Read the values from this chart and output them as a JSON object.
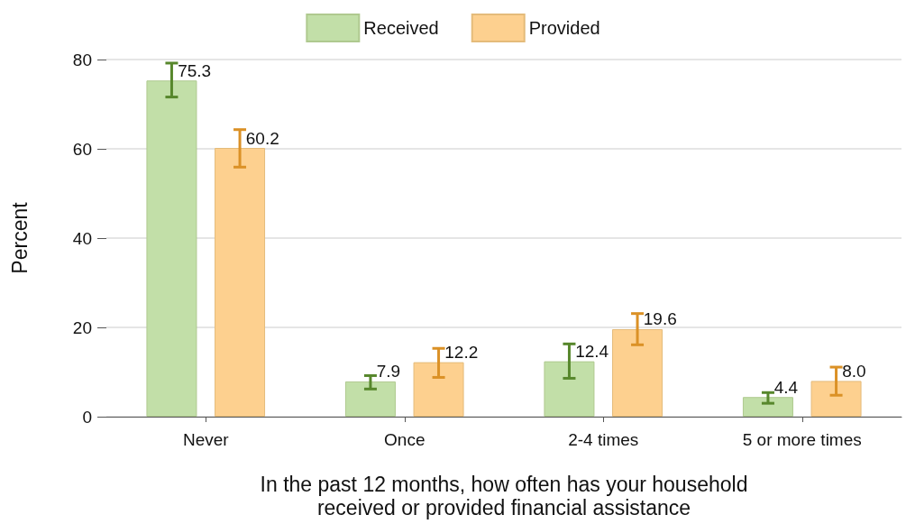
{
  "chart_data": {
    "type": "bar",
    "xlabel": "In the past 12 months, how often has your household\nreceived or provided financial assistance",
    "ylabel": "Percent",
    "categories": [
      "Never",
      "Once",
      "2-4 times",
      "5 or more times"
    ],
    "series": [
      {
        "name": "Received",
        "color": "#c2dfa8",
        "values": [
          75.3,
          7.9,
          12.4,
          4.4
        ],
        "value_labels": [
          "75.3",
          "7.9",
          "12.4",
          "4.4"
        ],
        "errors": [
          [
            71.6,
            79.2
          ],
          [
            6.2,
            9.2
          ],
          [
            8.6,
            16.3
          ],
          [
            3.0,
            5.4
          ]
        ]
      },
      {
        "name": "Provided",
        "color": "#fdd08f",
        "values": [
          60.2,
          12.2,
          19.6,
          8.0
        ],
        "value_labels": [
          "60.2",
          "12.2",
          "19.6",
          "8.0"
        ],
        "errors": [
          [
            55.9,
            64.3
          ],
          [
            8.8,
            15.3
          ],
          [
            16.1,
            23.1
          ],
          [
            4.8,
            11.1
          ]
        ]
      }
    ],
    "ylim": [
      0,
      80
    ],
    "yticks": [
      0,
      20,
      40,
      60,
      80
    ],
    "grid": "y",
    "legend": "top"
  }
}
